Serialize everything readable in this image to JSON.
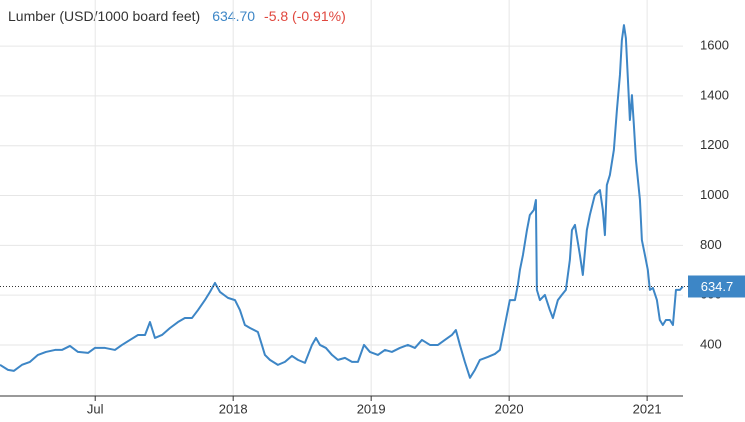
{
  "chart_data": {
    "type": "line",
    "title": "Lumber (USD/1000 board feet)",
    "price_text": "634.70",
    "change_text": "-5.8 (-0.91%)",
    "current_value": 634.7,
    "color": "#3d86c6",
    "grid": true,
    "xlim": [
      2016.81,
      2021.76
    ],
    "xticks": [
      {
        "value": 2017.5,
        "label": "Jul"
      },
      {
        "value": 2018.5,
        "label": "2018"
      },
      {
        "value": 2019.5,
        "label": "2019"
      },
      {
        "value": 2020.5,
        "label": "2020"
      },
      {
        "value": 2021.5,
        "label": "2021"
      }
    ],
    "ylim": [
      195,
      1785
    ],
    "yticks": [
      400,
      600,
      800,
      1000,
      1200,
      1400,
      1600
    ],
    "x": [
      2016.81,
      2016.868,
      2016.911,
      2016.969,
      2017.027,
      2017.085,
      2017.143,
      2017.209,
      2017.259,
      2017.317,
      2017.375,
      2017.448,
      2017.498,
      2017.571,
      2017.643,
      2017.694,
      2017.752,
      2017.81,
      2017.861,
      2017.897,
      2017.933,
      2017.984,
      2018.042,
      2018.1,
      2018.15,
      2018.201,
      2018.245,
      2018.295,
      2018.332,
      2018.368,
      2018.404,
      2018.462,
      2018.513,
      2018.549,
      2018.585,
      2018.622,
      2018.679,
      2018.708,
      2018.73,
      2018.766,
      2018.824,
      2018.875,
      2018.926,
      2018.969,
      2019.02,
      2019.071,
      2019.1,
      2019.129,
      2019.172,
      2019.216,
      2019.259,
      2019.31,
      2019.361,
      2019.404,
      2019.448,
      2019.491,
      2019.549,
      2019.6,
      2019.65,
      2019.708,
      2019.766,
      2019.817,
      2019.868,
      2019.926,
      2019.984,
      2020.034,
      2020.085,
      2020.114,
      2020.143,
      2020.179,
      2020.216,
      2020.252,
      2020.288,
      2020.346,
      2020.397,
      2020.433,
      2020.469,
      2020.505,
      2020.542,
      2020.563,
      2020.578,
      2020.6,
      2020.629,
      2020.65,
      2020.679,
      2020.694,
      2020.701,
      2020.723,
      2020.759,
      2020.795,
      2020.817,
      2020.853,
      2020.882,
      2020.911,
      2020.94,
      2020.955,
      2020.977,
      2021.013,
      2021.034,
      2021.063,
      2021.085,
      2021.121,
      2021.158,
      2021.179,
      2021.194,
      2021.208,
      2021.23,
      2021.259,
      2021.281,
      2021.303,
      2021.317,
      2021.332,
      2021.346,
      2021.361,
      2021.375,
      2021.39,
      2021.404,
      2021.419,
      2021.448,
      2021.462,
      2021.484,
      2021.505,
      2021.52,
      2021.542,
      2021.571,
      2021.592,
      2021.614,
      2021.636,
      2021.665,
      2021.687,
      2021.709,
      2021.738,
      2021.759
    ],
    "values": [
      320,
      300,
      296,
      320,
      332,
      360,
      372,
      380,
      380,
      396,
      372,
      368,
      388,
      388,
      380,
      400,
      420,
      440,
      440,
      492,
      428,
      440,
      468,
      492,
      508,
      508,
      540,
      580,
      613,
      649,
      613,
      589,
      580,
      540,
      480,
      468,
      452,
      400,
      360,
      340,
      320,
      332,
      356,
      340,
      328,
      400,
      428,
      400,
      388,
      360,
      340,
      348,
      332,
      332,
      400,
      372,
      360,
      380,
      372,
      388,
      400,
      388,
      420,
      400,
      400,
      420,
      440,
      460,
      400,
      332,
      268,
      300,
      340,
      352,
      364,
      380,
      480,
      580,
      580,
      641,
      701,
      761,
      861,
      922,
      942,
      982,
      621,
      580,
      601,
      540,
      508,
      580,
      601,
      621,
      741,
      861,
      882,
      761,
      681,
      861,
      922,
      1002,
      1022,
      942,
      841,
      1042,
      1082,
      1183,
      1343,
      1484,
      1624,
      1684,
      1632,
      1463,
      1303,
      1403,
      1283,
      1142,
      982,
      821,
      761,
      701,
      621,
      629,
      580,
      500,
      480,
      500,
      500,
      480,
      621,
      621,
      634.7
    ]
  }
}
